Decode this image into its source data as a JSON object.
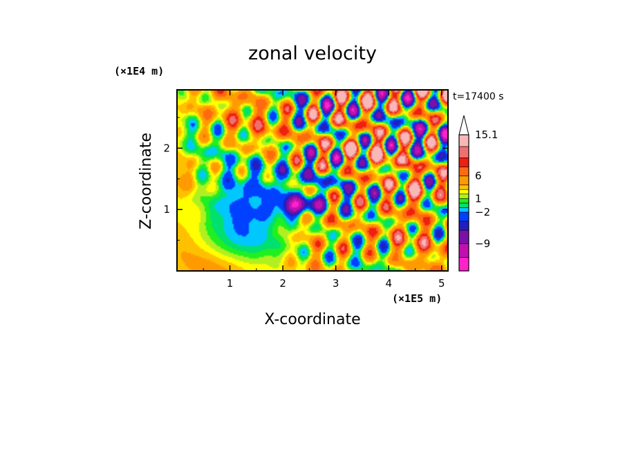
{
  "chart_data": {
    "type": "heatmap",
    "title": "zonal velocity",
    "xlabel": "X-coordinate",
    "ylabel": "Z-coordinate",
    "x_unit": "(×1E5 m)",
    "y_unit": "(×1E4 m)",
    "time_label": "t=17400 s",
    "xlim": [
      0,
      5.12
    ],
    "ylim": [
      0,
      2.95
    ],
    "x_ticks": [
      "1",
      "2",
      "3",
      "4",
      "5"
    ],
    "x_tick_values": [
      1,
      2,
      3,
      4,
      5
    ],
    "y_ticks": [
      "1",
      "2"
    ],
    "y_tick_values": [
      1,
      2
    ],
    "colorbar": {
      "labels": [
        "15.1",
        "6",
        "1",
        "−2",
        "−9"
      ],
      "label_values": [
        15.1,
        6,
        1,
        -2,
        -9
      ],
      "bands": [
        {
          "min": -15,
          "max": -12,
          "color": "#ff22cc"
        },
        {
          "min": -12,
          "max": -9,
          "color": "#c010b0"
        },
        {
          "min": -9,
          "max": -6,
          "color": "#7a10a8"
        },
        {
          "min": -6,
          "max": -4,
          "color": "#2020c0"
        },
        {
          "min": -4,
          "max": -2,
          "color": "#0040ff"
        },
        {
          "min": -2,
          "max": -1,
          "color": "#00c8ff"
        },
        {
          "min": -1,
          "max": 0,
          "color": "#00e070"
        },
        {
          "min": 0,
          "max": 1,
          "color": "#20f020"
        },
        {
          "min": 1,
          "max": 2,
          "color": "#b0f020"
        },
        {
          "min": 2,
          "max": 3,
          "color": "#ffff00"
        },
        {
          "min": 3,
          "max": 4,
          "color": "#ffc000"
        },
        {
          "min": 4,
          "max": 6,
          "color": "#ff9a00"
        },
        {
          "min": 6,
          "max": 8,
          "color": "#ff6a10"
        },
        {
          "min": 8,
          "max": 10,
          "color": "#ee2010"
        },
        {
          "min": 10,
          "max": 12.5,
          "color": "#f07070"
        },
        {
          "min": 12.5,
          "max": 15.1,
          "color": "#f8b8b8"
        }
      ],
      "overflow": "triangle-top"
    },
    "field_features": [
      {
        "type": "background",
        "value": 3.0
      },
      {
        "type": "blob",
        "x": 1.6,
        "z": 1.2,
        "sx": 1.0,
        "sz": 0.55,
        "value": -3.5
      },
      {
        "type": "blob",
        "x": 0.9,
        "z": 0.4,
        "sx": 0.9,
        "sz": 0.3,
        "value": 1.0
      },
      {
        "type": "blob",
        "x": 2.3,
        "z": 1.05,
        "sx": 0.35,
        "sz": 0.15,
        "value": -9.0
      },
      {
        "type": "blob",
        "x": 4.5,
        "z": 1.2,
        "sx": 0.25,
        "sz": 0.35,
        "value": 6.0
      },
      {
        "type": "blob",
        "x": 0.3,
        "z": 0.9,
        "sx": 0.25,
        "sz": 0.2,
        "value": 4.0
      },
      {
        "type": "blob",
        "x": 3.5,
        "z": 0.15,
        "sx": 0.5,
        "sz": 0.12,
        "value": 3.0
      },
      {
        "type": "waves",
        "x_start": 0.2,
        "z_start": 1.4,
        "amplitude": 8.0
      },
      {
        "type": "waves",
        "x_start": 2.3,
        "z_start": 0.0,
        "amplitude": 11.0
      }
    ]
  }
}
